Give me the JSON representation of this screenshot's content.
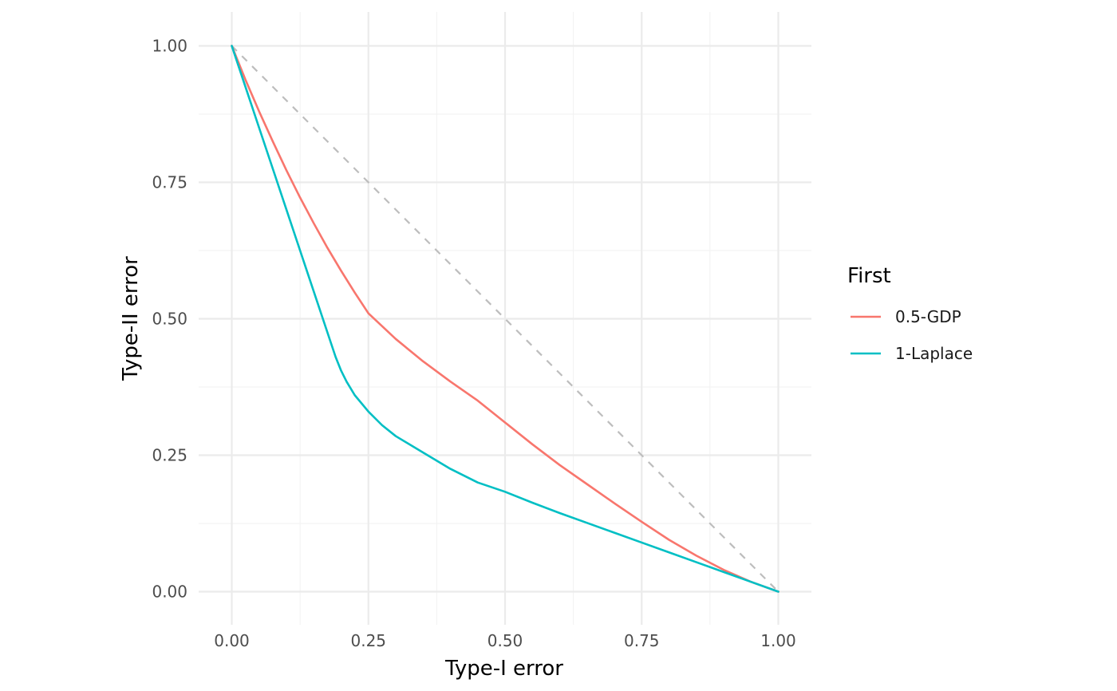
{
  "chart_data": {
    "type": "line",
    "xlabel": "Type-I error",
    "ylabel": "Type-II error",
    "xlim": [
      -0.06,
      1.06
    ],
    "ylim": [
      -0.06,
      1.06
    ],
    "x_ticks": [
      0.0,
      0.25,
      0.5,
      0.75,
      1.0
    ],
    "x_tick_labels": [
      "0.00",
      "0.25",
      "0.50",
      "0.75",
      "1.00"
    ],
    "y_ticks": [
      0.0,
      0.25,
      0.5,
      0.75,
      1.0
    ],
    "y_tick_labels": [
      "0.00",
      "0.25",
      "0.50",
      "0.75",
      "1.00"
    ],
    "grid": true,
    "legend": {
      "title": "First",
      "position": "right"
    },
    "reference_line": {
      "style": "dashed",
      "color": "#bdbdbd",
      "x": [
        0,
        1
      ],
      "y": [
        1,
        0
      ]
    },
    "series": [
      {
        "name": "0.5-GDP",
        "color": "#F8766D",
        "x": [
          0.0,
          0.025,
          0.05,
          0.075,
          0.1,
          0.125,
          0.15,
          0.175,
          0.2,
          0.225,
          0.25,
          0.3,
          0.35,
          0.4,
          0.45,
          0.5,
          0.55,
          0.6,
          0.65,
          0.7,
          0.75,
          0.8,
          0.85,
          0.9,
          0.95,
          1.0
        ],
        "y": [
          1.0,
          0.938,
          0.88,
          0.825,
          0.772,
          0.722,
          0.675,
          0.63,
          0.588,
          0.548,
          0.51,
          0.463,
          0.422,
          0.385,
          0.35,
          0.31,
          0.27,
          0.232,
          0.197,
          0.162,
          0.128,
          0.095,
          0.066,
          0.04,
          0.018,
          0.0
        ]
      },
      {
        "name": "1-Laplace",
        "color": "#00BFC4",
        "x": [
          0.0,
          0.025,
          0.05,
          0.075,
          0.1,
          0.125,
          0.15,
          0.175,
          0.19,
          0.2,
          0.21,
          0.225,
          0.25,
          0.275,
          0.3,
          0.35,
          0.4,
          0.45,
          0.5,
          0.55,
          0.6,
          0.65,
          0.7,
          0.75,
          0.8,
          0.85,
          0.9,
          0.95,
          1.0
        ],
        "y": [
          1.0,
          0.925,
          0.85,
          0.775,
          0.7,
          0.625,
          0.55,
          0.475,
          0.43,
          0.405,
          0.385,
          0.36,
          0.33,
          0.305,
          0.285,
          0.255,
          0.225,
          0.2,
          0.183,
          0.163,
          0.144,
          0.126,
          0.108,
          0.09,
          0.072,
          0.054,
          0.036,
          0.018,
          0.0
        ]
      }
    ]
  }
}
